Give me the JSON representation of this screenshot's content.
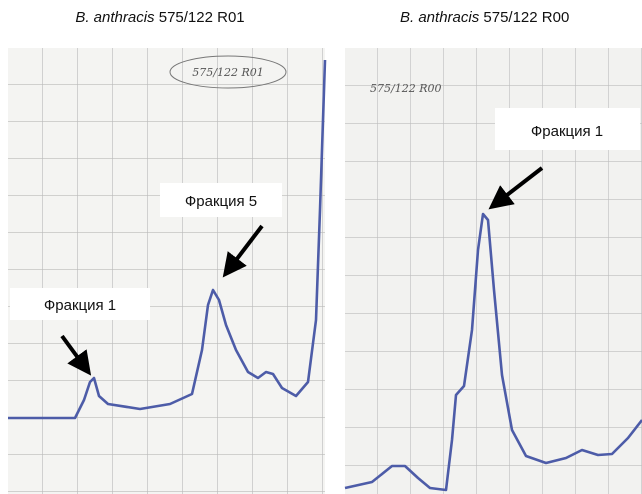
{
  "panels": [
    {
      "species": "B. anthracis",
      "strain": "575/122 R01",
      "handwritten": "575/122 R01",
      "labels": [
        "Фракция 1",
        "Фракция 5"
      ]
    },
    {
      "species": "B. anthracis",
      "strain": "575/122 R00",
      "handwritten": "575/122 R00",
      "labels": [
        "Фракция 1"
      ]
    }
  ]
}
